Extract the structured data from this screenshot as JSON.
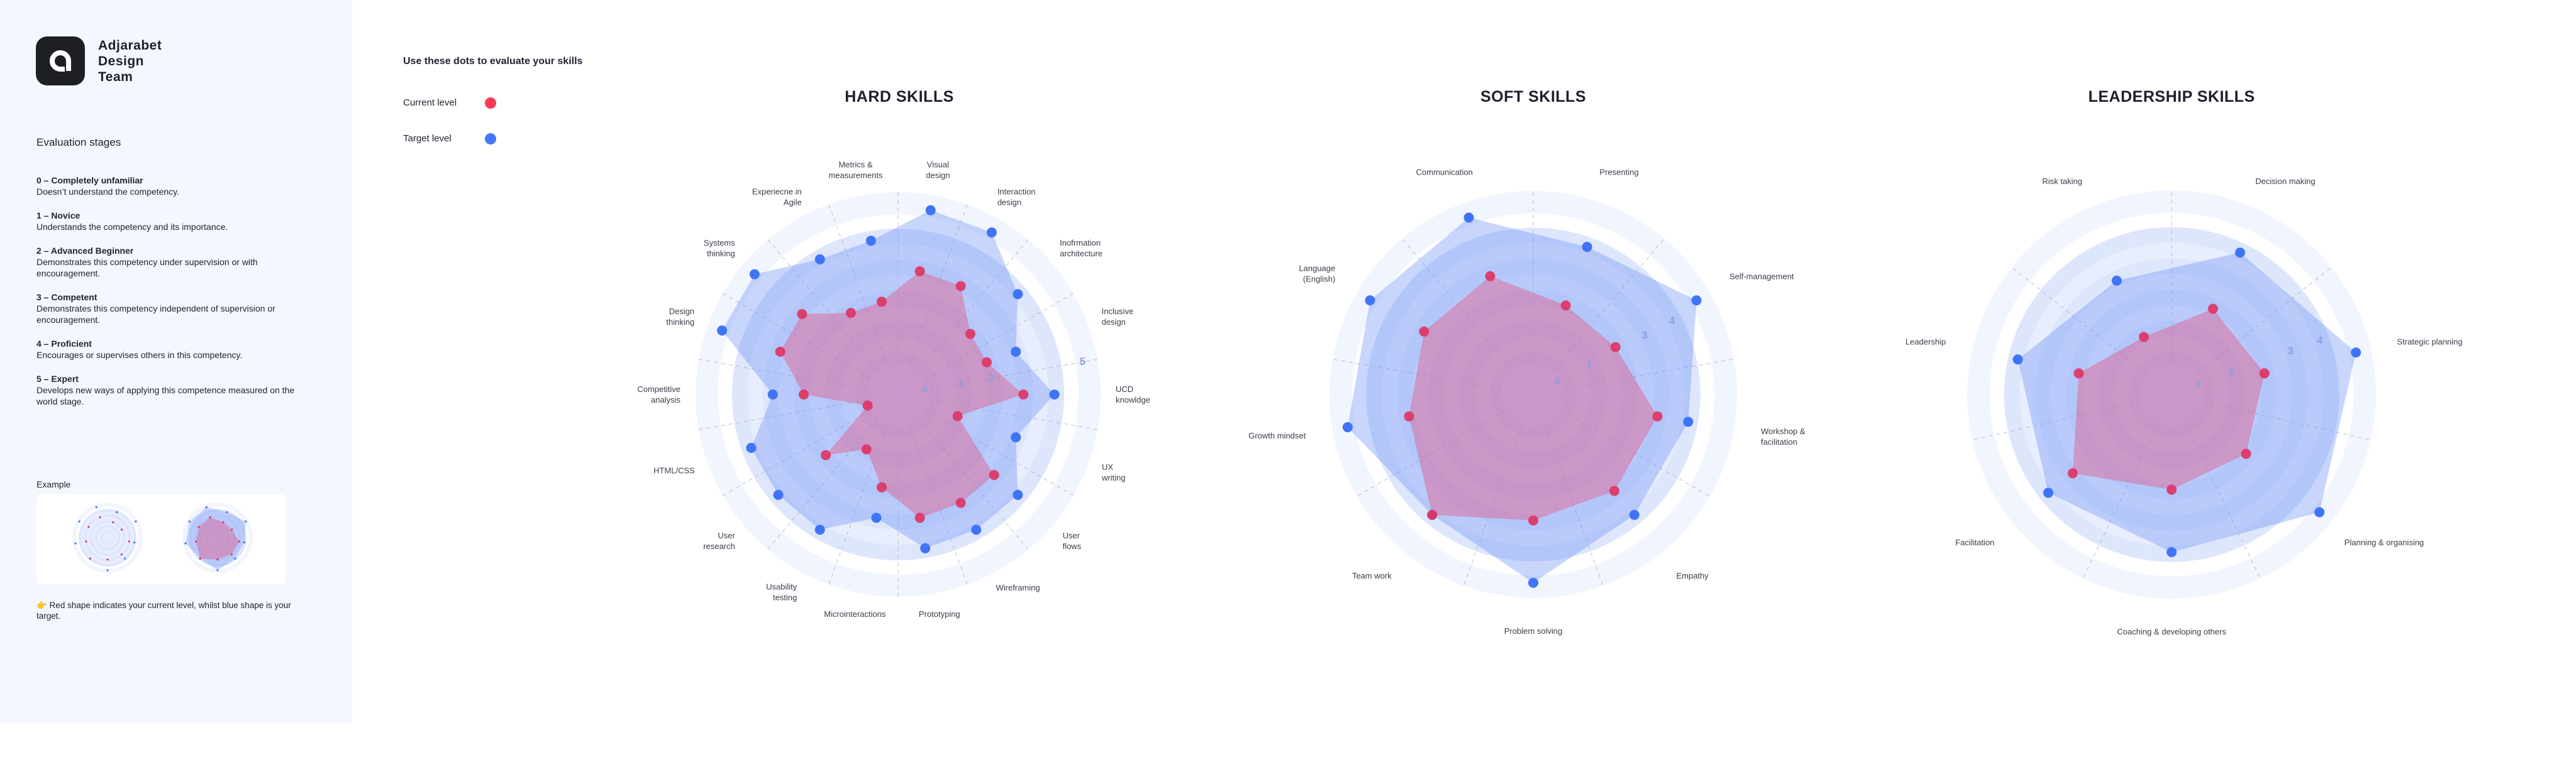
{
  "sidebar": {
    "brand": [
      "Adjarabet",
      "Design",
      "Team"
    ],
    "stages_heading": "Evaluation stages",
    "stages": [
      {
        "title": "0 – Completely unfamiliar",
        "desc": "Doesn’t understand the competency."
      },
      {
        "title": "1 – Novice",
        "desc": "Understands the competency and its importance."
      },
      {
        "title": "2 – Advanced Beginner",
        "desc": "Demonstrates this competency under supervision or with encouragement."
      },
      {
        "title": "3 – Competent",
        "desc": "Demonstrates this competency independent of supervision or encouragement."
      },
      {
        "title": "4 – Proficient",
        "desc": "Encourages or supervises others in this competency."
      },
      {
        "title": "5 – Expert",
        "desc": "Develops new ways of applying this competence measured on the world stage."
      }
    ],
    "example_label": "Example",
    "note": "👉 Red shape indicates your current level,  whilst blue shape is your target."
  },
  "legend": {
    "heading": "Use these dots to evaluate your skills",
    "current": "Current level",
    "target": "Target level"
  },
  "colors": {
    "current": "#de3563",
    "target": "#3f74f6",
    "current_fill": "#e05a8a",
    "target_fill": "#6f93f7",
    "sidebar_bg": "#f4f7fe",
    "scale_label": "#8e9ee0"
  },
  "chart_data": [
    {
      "type": "radar",
      "title": "HARD SKILLS",
      "range": [
        0,
        5
      ],
      "scale_labels": [
        "0",
        "1",
        "2",
        "5"
      ],
      "axes": [
        [
          "Visual",
          "design"
        ],
        [
          "Interaction",
          "design"
        ],
        [
          "Inofrmation",
          "architecture"
        ],
        [
          "Inclusive",
          "design"
        ],
        [
          "UCD",
          "knowldge"
        ],
        [
          "UX",
          "writing"
        ],
        [
          "User",
          "flows"
        ],
        [
          "Wireframing"
        ],
        [
          "Prototyping"
        ],
        [
          "Microinteractions"
        ],
        [
          "Usability",
          "testing"
        ],
        [
          "User",
          "research"
        ],
        [
          "HTML/CSS"
        ],
        [
          "Competitive",
          "analysis"
        ],
        [
          "Design",
          "thinking"
        ],
        [
          "Systems",
          "thinking"
        ],
        [
          "Experiecne in",
          "Agile"
        ],
        [
          "Metrics &",
          "measurements"
        ]
      ],
      "series": [
        {
          "name": "Current level",
          "values": [
            3,
            3,
            2,
            2,
            3,
            1,
            3,
            3,
            3,
            2,
            1,
            2,
            0,
            2,
            3,
            3,
            2,
            2
          ]
        },
        {
          "name": "Target level",
          "values": [
            5,
            5,
            4,
            3,
            4,
            3,
            4,
            4,
            4,
            3,
            4,
            4,
            4,
            3,
            5,
            5,
            4,
            4
          ]
        }
      ]
    },
    {
      "type": "radar",
      "title": "SOFT SKILLS",
      "range": [
        0,
        5
      ],
      "scale_labels": [
        "0",
        "1",
        "3",
        "4"
      ],
      "axes": [
        [
          "Presenting"
        ],
        [
          "Self-management"
        ],
        [
          "Workshop &",
          "facilitation"
        ],
        [
          "Empathy"
        ],
        [
          "Problem solving"
        ],
        [
          "Team work"
        ],
        [
          "Growth mindset"
        ],
        [
          "Language",
          "(English)"
        ],
        [
          "Communication"
        ]
      ],
      "series": [
        {
          "name": "Current level",
          "values": [
            2,
            2,
            3,
            3,
            3,
            4,
            3,
            3,
            3
          ]
        },
        {
          "name": "Target level",
          "values": [
            4,
            5,
            4,
            4,
            5,
            4,
            5,
            5,
            5
          ]
        }
      ]
    },
    {
      "type": "radar",
      "title": "LEADERSHIP SKILLS",
      "range": [
        0,
        5
      ],
      "scale_labels": [
        "0",
        "1",
        "3",
        "4"
      ],
      "axes": [
        [
          "Decision making"
        ],
        [
          "Strategic planning"
        ],
        [
          "Planning & organising"
        ],
        [
          "Coaching & developing others"
        ],
        [
          "Facilitation"
        ],
        [
          "Leadership"
        ],
        [
          "Risk taking"
        ]
      ],
      "series": [
        {
          "name": "Current level",
          "values": [
            2,
            2,
            2,
            2,
            3,
            2,
            1
          ]
        },
        {
          "name": "Target level",
          "values": [
            4,
            5,
            5,
            4,
            4,
            4,
            3
          ]
        }
      ]
    }
  ]
}
